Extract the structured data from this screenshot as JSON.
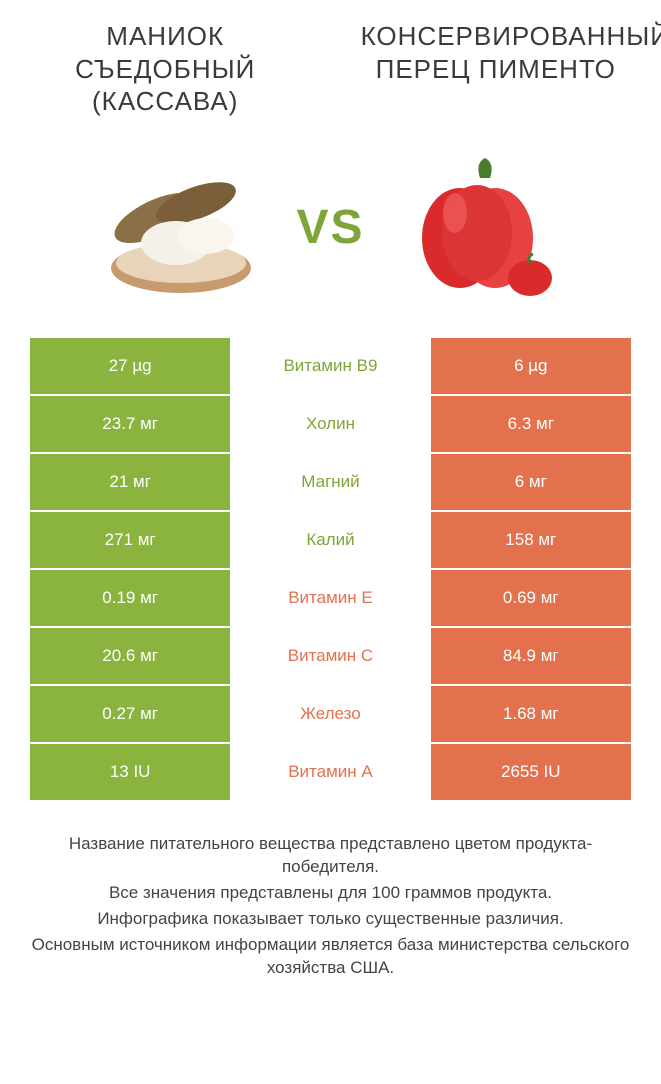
{
  "colors": {
    "green": "#8ab43e",
    "green_dark": "#7fa53a",
    "orange": "#e3714e",
    "white": "#ffffff",
    "text": "#3a3a3a"
  },
  "header": {
    "left_title": "МАНИОК СЪЕДОБНЫЙ (КАССАВА)",
    "right_title": "КОНСЕРВИРОВАННЫЙ ПЕРЕЦ ПИМЕНТО"
  },
  "vs_label": "VS",
  "table": {
    "type": "comparison-table",
    "columns": [
      "left_value",
      "nutrient",
      "right_value"
    ],
    "rows": [
      {
        "left": "27 µg",
        "mid": "Витамин B9",
        "right": "6 µg",
        "winner": "left"
      },
      {
        "left": "23.7 мг",
        "mid": "Холин",
        "right": "6.3 мг",
        "winner": "left"
      },
      {
        "left": "21 мг",
        "mid": "Магний",
        "right": "6 мг",
        "winner": "left"
      },
      {
        "left": "271 мг",
        "mid": "Калий",
        "right": "158 мг",
        "winner": "left"
      },
      {
        "left": "0.19 мг",
        "mid": "Витамин E",
        "right": "0.69 мг",
        "winner": "right"
      },
      {
        "left": "20.6 мг",
        "mid": "Витамин C",
        "right": "84.9 мг",
        "winner": "right"
      },
      {
        "left": "0.27 мг",
        "mid": "Железо",
        "right": "1.68 мг",
        "winner": "right"
      },
      {
        "left": "13 IU",
        "mid": "Витамин A",
        "right": "2655 IU",
        "winner": "right"
      }
    ]
  },
  "footnote": {
    "lines": [
      "Название питательного вещества представлено цветом продукта-победителя.",
      "Все значения представлены для 100 граммов продукта.",
      "Инфографика показывает только существенные различия.",
      "Основным источником информации является база министерства сельского хозяйства США."
    ]
  }
}
